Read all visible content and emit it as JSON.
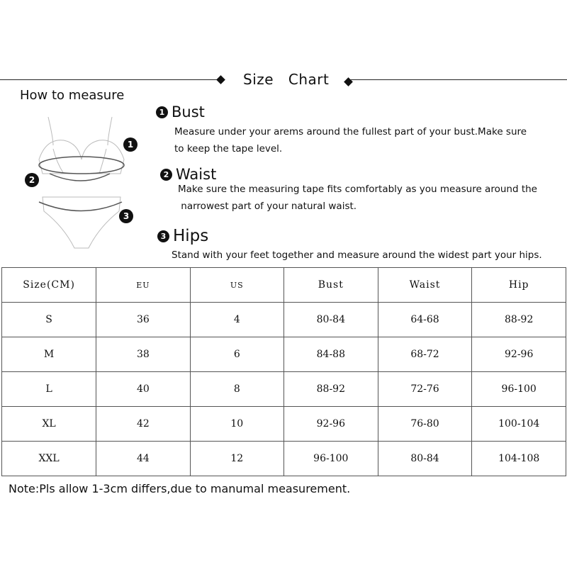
{
  "header": {
    "title": "Size Chart"
  },
  "how_to": {
    "label": "How to measure"
  },
  "illustration": {
    "markers": [
      "1",
      "2",
      "3"
    ]
  },
  "sections": [
    {
      "num": "1",
      "title": "Bust",
      "lines": [
        "Measure under your arems around the fullest part of your bust.Make sure",
        "to keep the tape level."
      ]
    },
    {
      "num": "2",
      "title": "Waist",
      "lines": [
        "Make sure the measuring tape fits comfortably as you measure around the",
        " narrowest part of your natural waist."
      ]
    },
    {
      "num": "3",
      "title": "Hips",
      "lines": [
        "Stand with your feet together and measure around the widest part your hips."
      ]
    }
  ],
  "table": {
    "headers": [
      "Size(CM)",
      "EU",
      "US",
      "Bust",
      "Waist",
      "Hip"
    ],
    "rows": [
      [
        "S",
        "36",
        "4",
        "80-84",
        "64-68",
        "88-92"
      ],
      [
        "M",
        "38",
        "6",
        "84-88",
        "68-72",
        "92-96"
      ],
      [
        "L",
        "40",
        "8",
        "88-92",
        "72-76",
        "96-100"
      ],
      [
        "XL",
        "42",
        "10",
        "92-96",
        "76-80",
        "100-104"
      ],
      [
        "XXL",
        "44",
        "12",
        "96-100",
        "80-84",
        "104-108"
      ]
    ]
  },
  "note": "Note:Pls allow 1-3cm differs,due to manumal measurement."
}
